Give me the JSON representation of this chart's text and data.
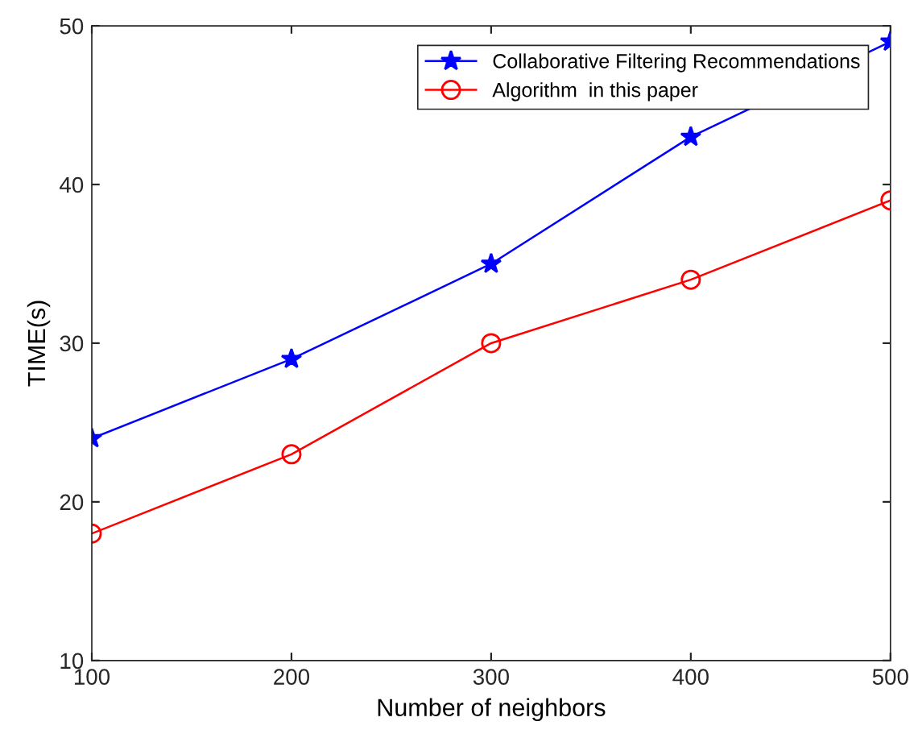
{
  "chart_data": {
    "type": "line",
    "xlabel": "Number of neighbors",
    "ylabel": "TIME(s)",
    "x": [
      100,
      200,
      300,
      400,
      500
    ],
    "series": [
      {
        "name": "Collaborative Filtering Recommendations",
        "color": "#0000ff",
        "values": [
          24,
          29,
          35,
          43,
          49
        ],
        "marker": "star"
      },
      {
        "name": "Algorithm  in this paper",
        "color": "#ff0000",
        "values": [
          18,
          23,
          30,
          34,
          39
        ],
        "marker": "circle"
      }
    ],
    "xlim": [
      100,
      500
    ],
    "ylim": [
      10,
      50
    ],
    "xticks": [
      100,
      200,
      300,
      400,
      500
    ],
    "yticks": [
      10,
      20,
      30,
      40,
      50
    ],
    "grid": false,
    "legend": "top right",
    "line_style": "solid"
  }
}
